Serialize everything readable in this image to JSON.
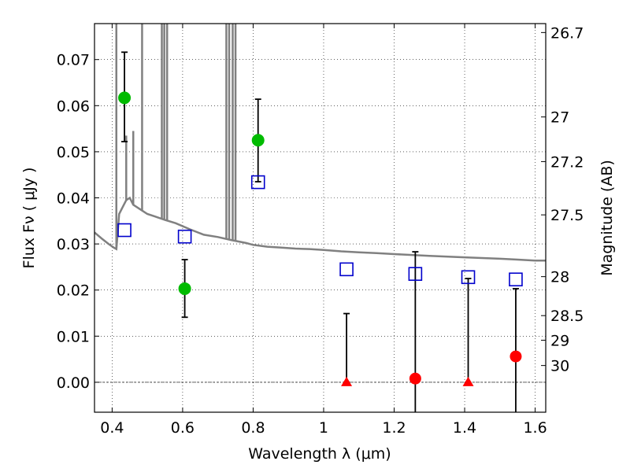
{
  "chart_data": {
    "type": "scatter",
    "title": "",
    "xlabel": "Wavelength  λ (μm)",
    "ylabel": "Flux  Fν  ( μJy )",
    "ylabel_right": "Magnitude (AB)",
    "xlim": [
      0.35,
      1.63
    ],
    "ylim": [
      -0.0065,
      0.0778
    ],
    "grid": true,
    "legend": "none",
    "x_ticks": [
      {
        "value": 0.4,
        "label": "0.4"
      },
      {
        "value": 0.6,
        "label": "0.6"
      },
      {
        "value": 0.8,
        "label": "0.8"
      },
      {
        "value": 1.0,
        "label": "1"
      },
      {
        "value": 1.2,
        "label": "1.2"
      },
      {
        "value": 1.4,
        "label": "1.4"
      },
      {
        "value": 1.6,
        "label": "1.6"
      }
    ],
    "y_ticks": [
      {
        "value": 0.0,
        "label": "0.00"
      },
      {
        "value": 0.01,
        "label": "0.01"
      },
      {
        "value": 0.02,
        "label": "0.02"
      },
      {
        "value": 0.03,
        "label": "0.03"
      },
      {
        "value": 0.04,
        "label": "0.04"
      },
      {
        "value": 0.05,
        "label": "0.05"
      },
      {
        "value": 0.06,
        "label": "0.06"
      },
      {
        "value": 0.07,
        "label": "0.07"
      }
    ],
    "mag_ticks": [
      {
        "value": 26.7,
        "label": "26.7"
      },
      {
        "value": 27.0,
        "label": "27"
      },
      {
        "value": 27.2,
        "label": "27.2"
      },
      {
        "value": 27.5,
        "label": "27.5"
      },
      {
        "value": 28.0,
        "label": "28"
      },
      {
        "value": 28.5,
        "label": "28.5"
      },
      {
        "value": 29.0,
        "label": "29"
      },
      {
        "value": 30.0,
        "label": "30"
      }
    ],
    "colors": {
      "model": "#808080",
      "detection": "#00bb00",
      "upper_limit": "#ff0000",
      "model_photometry": "#0000cc",
      "error_bar": "#000000"
    },
    "model_spectrum": {
      "x": [
        0.35,
        0.37,
        0.39,
        0.405,
        0.412,
        0.42,
        0.43,
        0.44,
        0.45,
        0.46,
        0.48,
        0.5,
        0.52,
        0.55,
        0.58,
        0.62,
        0.66,
        0.7,
        0.74,
        0.78,
        0.8,
        0.84,
        0.88,
        0.92,
        0.96,
        1.0,
        1.05,
        1.1,
        1.15,
        1.2,
        1.3,
        1.4,
        1.5,
        1.55,
        1.6,
        1.63
      ],
      "y": [
        0.0325,
        0.0312,
        0.03,
        0.0292,
        0.0289,
        0.0365,
        0.038,
        0.0395,
        0.04,
        0.0385,
        0.0375,
        0.0365,
        0.036,
        0.0352,
        0.0345,
        0.0332,
        0.032,
        0.0315,
        0.0308,
        0.0302,
        0.0298,
        0.0294,
        0.0292,
        0.029,
        0.0289,
        0.0287,
        0.0284,
        0.0282,
        0.028,
        0.0278,
        0.0274,
        0.0271,
        0.0268,
        0.0266,
        0.0264,
        0.0264
      ]
    },
    "emission_lines": [
      {
        "x": 0.412,
        "peak": 0.0778
      },
      {
        "x": 0.44,
        "peak": 0.0535
      },
      {
        "x": 0.46,
        "peak": 0.0545
      },
      {
        "x": 0.485,
        "peak": 0.0778
      },
      {
        "x": 0.541,
        "peak": 0.0778
      },
      {
        "x": 0.548,
        "peak": 0.0778
      },
      {
        "x": 0.556,
        "peak": 0.0778
      },
      {
        "x": 0.724,
        "peak": 0.0778
      },
      {
        "x": 0.732,
        "peak": 0.0778
      },
      {
        "x": 0.742,
        "peak": 0.0778
      },
      {
        "x": 0.75,
        "peak": 0.0778
      }
    ],
    "detections": [
      {
        "x": 0.435,
        "y": 0.0617,
        "err_low": 0.0522,
        "err_high": 0.0716
      },
      {
        "x": 0.606,
        "y": 0.0203,
        "err_low": 0.0141,
        "err_high": 0.0266
      },
      {
        "x": 0.814,
        "y": 0.0525,
        "err_low": 0.0435,
        "err_high": 0.0614
      }
    ],
    "upper_limits": [
      {
        "x": 1.065,
        "y": 0.0,
        "marker": "triangle",
        "err_low": 0.0,
        "err_high": 0.0149
      },
      {
        "x": 1.26,
        "y": 0.0008,
        "marker": "circle",
        "err_low": -0.0065,
        "err_high": 0.0283
      },
      {
        "x": 1.41,
        "y": 0.0,
        "marker": "triangle",
        "err_low": 0.0,
        "err_high": 0.0225
      },
      {
        "x": 1.545,
        "y": 0.0056,
        "marker": "circle",
        "err_low": -0.0065,
        "err_high": 0.0203
      }
    ],
    "model_photometry": [
      {
        "x": 0.435,
        "y": 0.033
      },
      {
        "x": 0.606,
        "y": 0.0316
      },
      {
        "x": 0.814,
        "y": 0.0434
      },
      {
        "x": 1.065,
        "y": 0.0245
      },
      {
        "x": 1.26,
        "y": 0.0235
      },
      {
        "x": 1.41,
        "y": 0.0228
      },
      {
        "x": 1.545,
        "y": 0.0223
      }
    ]
  }
}
